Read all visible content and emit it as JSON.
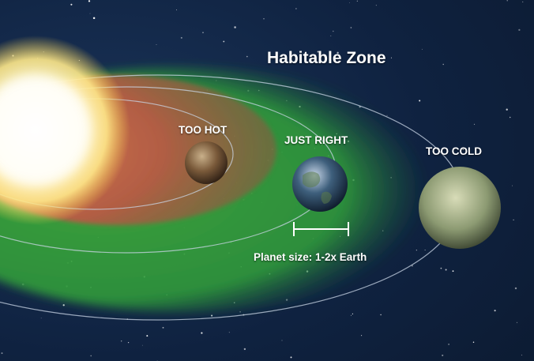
{
  "diagram": {
    "title": "Habitable Zone",
    "planets": [
      {
        "label": "TOO HOT"
      },
      {
        "label": "JUST RIGHT"
      },
      {
        "label": "TOO COLD"
      }
    ],
    "size_note": "Planet size: 1-2x Earth"
  },
  "colors": {
    "space": "#0f2240",
    "hot_zone": "#b85a44",
    "habitable_zone": "#3fa63a",
    "sun": "#fffbe0",
    "orbit": "#c9d6e6",
    "text": "#ffffff"
  }
}
